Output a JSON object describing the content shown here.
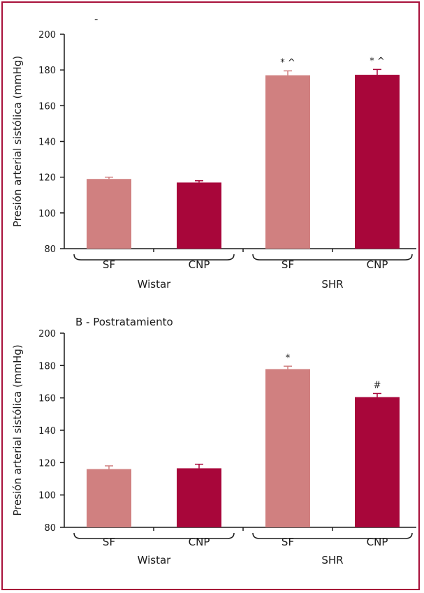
{
  "chart_data": [
    {
      "type": "bar",
      "title": "",
      "title_fragment": "-",
      "ylabel": "Presión arterial sistólica (mmHg)",
      "ylim": [
        80,
        200
      ],
      "yticks": [
        80,
        100,
        120,
        140,
        160,
        180,
        200
      ],
      "categories": [
        "SF",
        "CNP",
        "SF",
        "CNP"
      ],
      "groups": [
        {
          "label": "Wistar",
          "categories": [
            0,
            1
          ]
        },
        {
          "label": "SHR",
          "categories": [
            2,
            3
          ]
        }
      ],
      "values": [
        119,
        117,
        177,
        177.3
      ],
      "errors": [
        1,
        1,
        2.5,
        3
      ],
      "annotations": [
        "",
        "",
        "* ^",
        "* ^"
      ],
      "colors": [
        "#d08080",
        "#a8063a"
      ],
      "grid": false
    },
    {
      "type": "bar",
      "title": "B - Postratamiento",
      "ylabel": "Presión arterial sistólica (mmHg)",
      "ylim": [
        80,
        200
      ],
      "yticks": [
        80,
        100,
        120,
        140,
        160,
        180,
        200
      ],
      "categories": [
        "SF",
        "CNP",
        "SF",
        "CNP"
      ],
      "groups": [
        {
          "label": "Wistar",
          "categories": [
            0,
            1
          ]
        },
        {
          "label": "SHR",
          "categories": [
            2,
            3
          ]
        }
      ],
      "values": [
        116,
        116.5,
        177.8,
        160.5
      ],
      "errors": [
        2,
        2.5,
        1.8,
        2.2
      ],
      "annotations": [
        "",
        "",
        "*",
        "#"
      ],
      "colors": [
        "#d08080",
        "#a8063a"
      ],
      "grid": false
    }
  ]
}
